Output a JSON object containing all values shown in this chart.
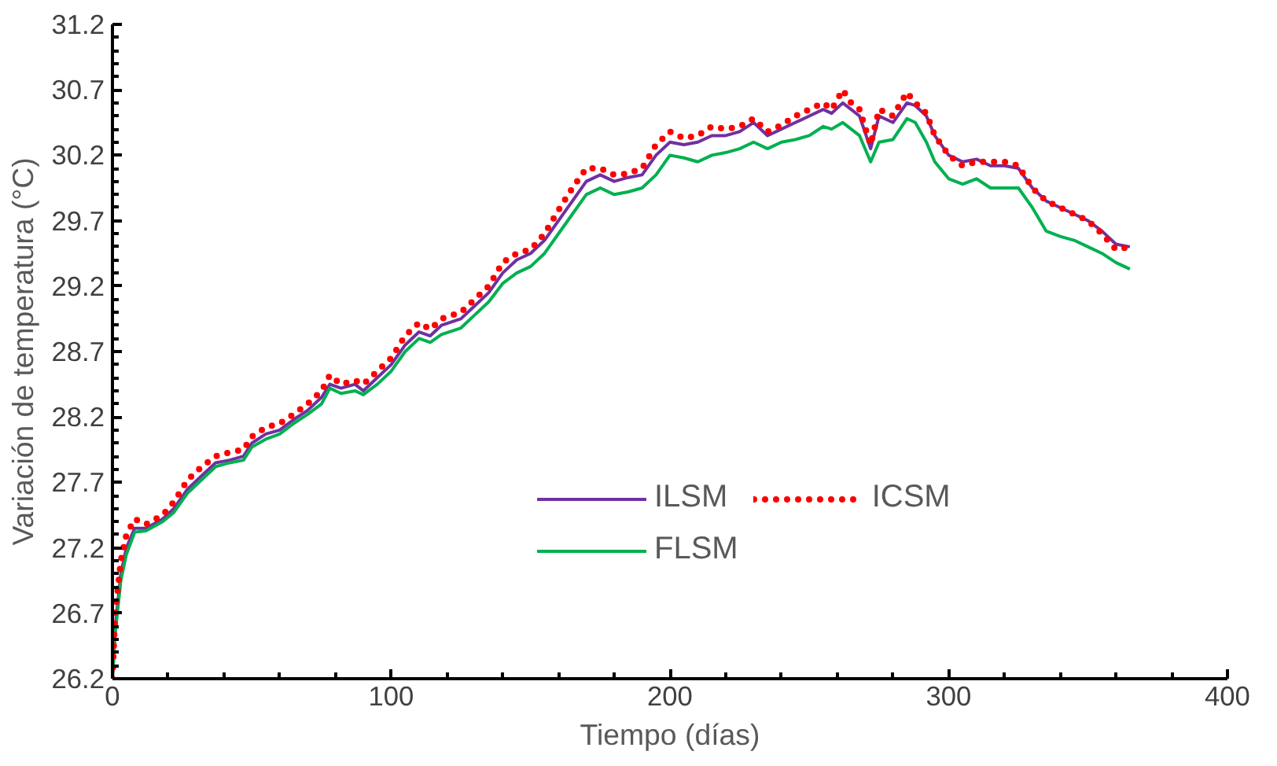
{
  "chart_data": {
    "type": "line",
    "xlabel": "Tiempo (días)",
    "ylabel": "Variación de temperatura (°C)",
    "x": [
      0,
      1,
      3,
      5,
      8,
      12,
      18,
      22,
      27,
      32,
      37,
      42,
      47,
      50,
      55,
      60,
      65,
      70,
      75,
      78,
      82,
      87,
      90,
      95,
      100,
      105,
      110,
      114,
      118,
      125,
      130,
      135,
      140,
      145,
      150,
      155,
      160,
      165,
      170,
      175,
      180,
      185,
      190,
      195,
      200,
      205,
      210,
      215,
      220,
      225,
      230,
      235,
      240,
      245,
      250,
      255,
      258,
      262,
      265,
      268,
      272,
      275,
      280,
      285,
      288,
      292,
      295,
      300,
      305,
      310,
      315,
      320,
      325,
      330,
      335,
      340,
      345,
      350,
      355,
      360,
      365
    ],
    "series": [
      {
        "name": "ILSM",
        "color": "#7030a0",
        "line_style": "solid",
        "values": [
          26.2,
          26.6,
          27.0,
          27.2,
          27.35,
          27.35,
          27.42,
          27.5,
          27.65,
          27.75,
          27.85,
          27.87,
          27.9,
          28.0,
          28.07,
          28.1,
          28.18,
          28.25,
          28.35,
          28.45,
          28.42,
          28.45,
          28.4,
          28.5,
          28.6,
          28.75,
          28.85,
          28.82,
          28.9,
          28.95,
          29.05,
          29.15,
          29.3,
          29.4,
          29.45,
          29.55,
          29.7,
          29.85,
          30.0,
          30.05,
          30.0,
          30.03,
          30.05,
          30.2,
          30.3,
          30.28,
          30.3,
          30.35,
          30.35,
          30.38,
          30.45,
          30.35,
          30.4,
          30.45,
          30.5,
          30.55,
          30.52,
          30.6,
          30.55,
          30.5,
          30.25,
          30.5,
          30.45,
          30.6,
          30.58,
          30.5,
          30.35,
          30.2,
          30.15,
          30.17,
          30.12,
          30.12,
          30.1,
          29.95,
          29.85,
          29.8,
          29.75,
          29.7,
          29.62,
          29.52,
          29.5
        ]
      },
      {
        "name": "FLSM",
        "color": "#00b050",
        "line_style": "solid",
        "values": [
          26.2,
          26.55,
          26.95,
          27.15,
          27.32,
          27.33,
          27.4,
          27.47,
          27.62,
          27.72,
          27.82,
          27.85,
          27.87,
          27.97,
          28.03,
          28.07,
          28.15,
          28.22,
          28.3,
          28.42,
          28.38,
          28.4,
          28.37,
          28.45,
          28.55,
          28.7,
          28.8,
          28.77,
          28.83,
          28.88,
          28.98,
          29.08,
          29.22,
          29.3,
          29.35,
          29.45,
          29.6,
          29.75,
          29.9,
          29.95,
          29.9,
          29.92,
          29.95,
          30.05,
          30.2,
          30.18,
          30.15,
          30.2,
          30.22,
          30.25,
          30.3,
          30.25,
          30.3,
          30.32,
          30.35,
          30.42,
          30.4,
          30.45,
          30.4,
          30.35,
          30.15,
          30.3,
          30.32,
          30.48,
          30.45,
          30.3,
          30.15,
          30.02,
          29.98,
          30.02,
          29.95,
          29.95,
          29.95,
          29.8,
          29.62,
          29.58,
          29.55,
          29.5,
          29.45,
          29.38,
          29.33
        ]
      },
      {
        "name": "ICSM",
        "color": "#ff0000",
        "line_style": "dotted",
        "values": [
          26.2,
          26.7,
          27.1,
          27.3,
          27.42,
          27.38,
          27.45,
          27.55,
          27.72,
          27.82,
          27.9,
          27.93,
          27.95,
          28.05,
          28.12,
          28.15,
          28.22,
          28.3,
          28.4,
          28.52,
          28.45,
          28.48,
          28.45,
          28.55,
          28.65,
          28.82,
          28.92,
          28.87,
          28.95,
          29.0,
          29.1,
          29.2,
          29.38,
          29.45,
          29.48,
          29.6,
          29.78,
          29.95,
          30.1,
          30.1,
          30.05,
          30.06,
          30.1,
          30.28,
          30.38,
          30.33,
          30.35,
          30.42,
          30.4,
          30.42,
          30.48,
          30.38,
          30.43,
          30.5,
          30.55,
          30.6,
          30.55,
          30.7,
          30.6,
          30.55,
          30.28,
          30.55,
          30.5,
          30.68,
          30.6,
          30.52,
          30.35,
          30.2,
          30.12,
          30.15,
          30.15,
          30.15,
          30.12,
          29.95,
          29.85,
          29.8,
          29.75,
          29.7,
          29.6,
          29.48,
          29.5
        ]
      }
    ],
    "xlim": [
      0,
      400
    ],
    "xticks": [
      0,
      100,
      200,
      300,
      400
    ],
    "ylim": [
      26.2,
      31.2
    ],
    "yticks": [
      26.2,
      26.7,
      27.2,
      27.7,
      28.2,
      28.7,
      29.2,
      29.7,
      30.2,
      30.7,
      31.2
    ],
    "grid": false,
    "legend": "bottom right",
    "marker": "none"
  }
}
